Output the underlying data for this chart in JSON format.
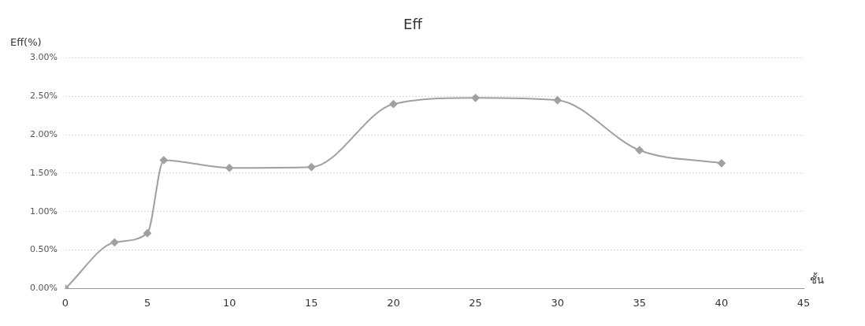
{
  "chart_data": {
    "type": "line",
    "title": "Eff",
    "ylabel": "Eff(%)",
    "xlabel": "ชั้น",
    "x": [
      0,
      3,
      5,
      6,
      10,
      15,
      20,
      25,
      30,
      35,
      40
    ],
    "series": [
      {
        "color": "#a0a0a0",
        "values": [
          0,
          0.6,
          0.72,
          1.67,
          1.57,
          1.58,
          2.4,
          2.48,
          2.45,
          1.8,
          1.63
        ]
      }
    ],
    "xlim": [
      0,
      45
    ],
    "xticks": [
      0,
      5,
      10,
      15,
      20,
      25,
      30,
      35,
      40,
      45
    ],
    "ylim": [
      0,
      3
    ],
    "yticks": [
      {
        "value": 0,
        "label": "0.00%"
      },
      {
        "value": 0.5,
        "label": "0.50%"
      },
      {
        "value": 1,
        "label": "1.00%"
      },
      {
        "value": 1.5,
        "label": "1.50%"
      },
      {
        "value": 2,
        "label": "2.00%"
      },
      {
        "value": 2.5,
        "label": "2.50%"
      },
      {
        "value": 3,
        "label": "3.00%"
      }
    ],
    "grid": "y",
    "marker": "diamond",
    "legend": false
  }
}
